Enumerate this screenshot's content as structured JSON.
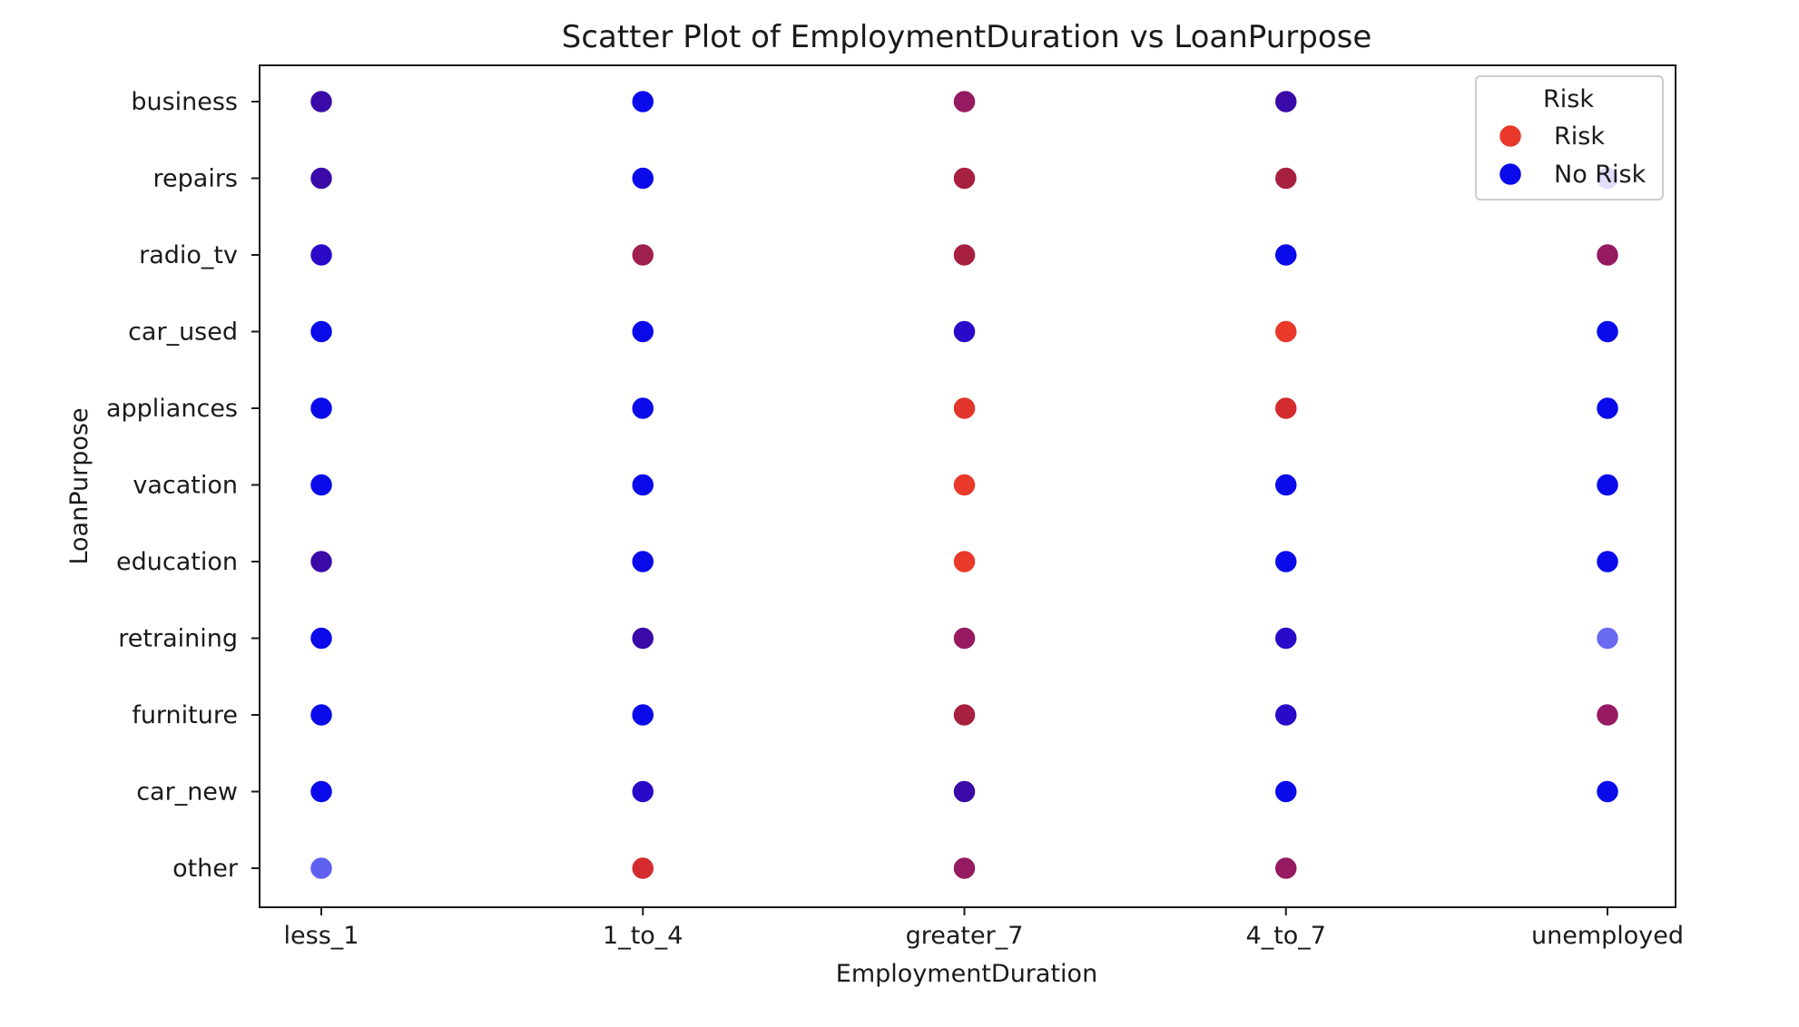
{
  "chart_data": {
    "type": "scatter",
    "title": "Scatter Plot of EmploymentDuration vs LoanPurpose",
    "xlabel": "EmploymentDuration",
    "ylabel": "LoanPurpose",
    "x_categories": [
      "less_1",
      "1_to_4",
      "greater_7",
      "4_to_7",
      "unemployed"
    ],
    "y_categories": [
      "business",
      "repairs",
      "radio_tv",
      "car_used",
      "appliances",
      "vacation",
      "education",
      "retraining",
      "furniture",
      "car_new",
      "other"
    ],
    "grid": false,
    "legend": {
      "title": "Risk",
      "placement": "top-right",
      "entries": [
        {
          "label": "Risk",
          "color": "#e8392a"
        },
        {
          "label": "No Risk",
          "color": "#0a0aea"
        }
      ]
    },
    "points": [
      {
        "x": "less_1",
        "y": "business",
        "color": "#3a0aa8"
      },
      {
        "x": "less_1",
        "y": "repairs",
        "color": "#3a0aa8"
      },
      {
        "x": "less_1",
        "y": "radio_tv",
        "color": "#2a0ac8"
      },
      {
        "x": "less_1",
        "y": "car_used",
        "color": "#0a0aea"
      },
      {
        "x": "less_1",
        "y": "appliances",
        "color": "#0a0aea"
      },
      {
        "x": "less_1",
        "y": "vacation",
        "color": "#0a0aea"
      },
      {
        "x": "less_1",
        "y": "education",
        "color": "#3a0aa8"
      },
      {
        "x": "less_1",
        "y": "retraining",
        "color": "#0a0aea"
      },
      {
        "x": "less_1",
        "y": "furniture",
        "color": "#0a0aea"
      },
      {
        "x": "less_1",
        "y": "car_new",
        "color": "#0a0aea"
      },
      {
        "x": "less_1",
        "y": "other",
        "color": "#5f5ff0"
      },
      {
        "x": "1_to_4",
        "y": "business",
        "color": "#0a0aea"
      },
      {
        "x": "1_to_4",
        "y": "repairs",
        "color": "#0a0aea"
      },
      {
        "x": "1_to_4",
        "y": "radio_tv",
        "color": "#a02050"
      },
      {
        "x": "1_to_4",
        "y": "car_used",
        "color": "#0a0aea"
      },
      {
        "x": "1_to_4",
        "y": "appliances",
        "color": "#0a0aea"
      },
      {
        "x": "1_to_4",
        "y": "vacation",
        "color": "#0a0aea"
      },
      {
        "x": "1_to_4",
        "y": "education",
        "color": "#0a0aea"
      },
      {
        "x": "1_to_4",
        "y": "retraining",
        "color": "#3a0aa8"
      },
      {
        "x": "1_to_4",
        "y": "furniture",
        "color": "#0a0aea"
      },
      {
        "x": "1_to_4",
        "y": "car_new",
        "color": "#2a0ac8"
      },
      {
        "x": "1_to_4",
        "y": "other",
        "color": "#d42b2e"
      },
      {
        "x": "greater_7",
        "y": "business",
        "color": "#951a62"
      },
      {
        "x": "greater_7",
        "y": "repairs",
        "color": "#a8203f"
      },
      {
        "x": "greater_7",
        "y": "radio_tv",
        "color": "#a8203f"
      },
      {
        "x": "greater_7",
        "y": "car_used",
        "color": "#2a0ac8"
      },
      {
        "x": "greater_7",
        "y": "appliances",
        "color": "#e2352c"
      },
      {
        "x": "greater_7",
        "y": "vacation",
        "color": "#e8392a"
      },
      {
        "x": "greater_7",
        "y": "education",
        "color": "#e8392a"
      },
      {
        "x": "greater_7",
        "y": "retraining",
        "color": "#951a62"
      },
      {
        "x": "greater_7",
        "y": "furniture",
        "color": "#a8203f"
      },
      {
        "x": "greater_7",
        "y": "car_new",
        "color": "#3a0aa8"
      },
      {
        "x": "greater_7",
        "y": "other",
        "color": "#951a62"
      },
      {
        "x": "4_to_7",
        "y": "business",
        "color": "#3a0aa8"
      },
      {
        "x": "4_to_7",
        "y": "repairs",
        "color": "#a8203f"
      },
      {
        "x": "4_to_7",
        "y": "radio_tv",
        "color": "#0a0aea"
      },
      {
        "x": "4_to_7",
        "y": "car_used",
        "color": "#e8392a"
      },
      {
        "x": "4_to_7",
        "y": "appliances",
        "color": "#d42b2e"
      },
      {
        "x": "4_to_7",
        "y": "vacation",
        "color": "#0a0aea"
      },
      {
        "x": "4_to_7",
        "y": "education",
        "color": "#0a0aea"
      },
      {
        "x": "4_to_7",
        "y": "retraining",
        "color": "#2a0ac8"
      },
      {
        "x": "4_to_7",
        "y": "furniture",
        "color": "#2a0ac8"
      },
      {
        "x": "4_to_7",
        "y": "car_new",
        "color": "#0a0aea"
      },
      {
        "x": "4_to_7",
        "y": "other",
        "color": "#951a62"
      },
      {
        "x": "unemployed",
        "y": "repairs",
        "color": "#5f5ff0"
      },
      {
        "x": "unemployed",
        "y": "radio_tv",
        "color": "#951a62"
      },
      {
        "x": "unemployed",
        "y": "car_used",
        "color": "#0a0aea"
      },
      {
        "x": "unemployed",
        "y": "appliances",
        "color": "#0a0aea"
      },
      {
        "x": "unemployed",
        "y": "vacation",
        "color": "#0a0aea"
      },
      {
        "x": "unemployed",
        "y": "education",
        "color": "#0a0aea"
      },
      {
        "x": "unemployed",
        "y": "retraining",
        "color": "#6a6af0"
      },
      {
        "x": "unemployed",
        "y": "furniture",
        "color": "#951a62"
      },
      {
        "x": "unemployed",
        "y": "car_new",
        "color": "#0a0aea"
      }
    ]
  }
}
